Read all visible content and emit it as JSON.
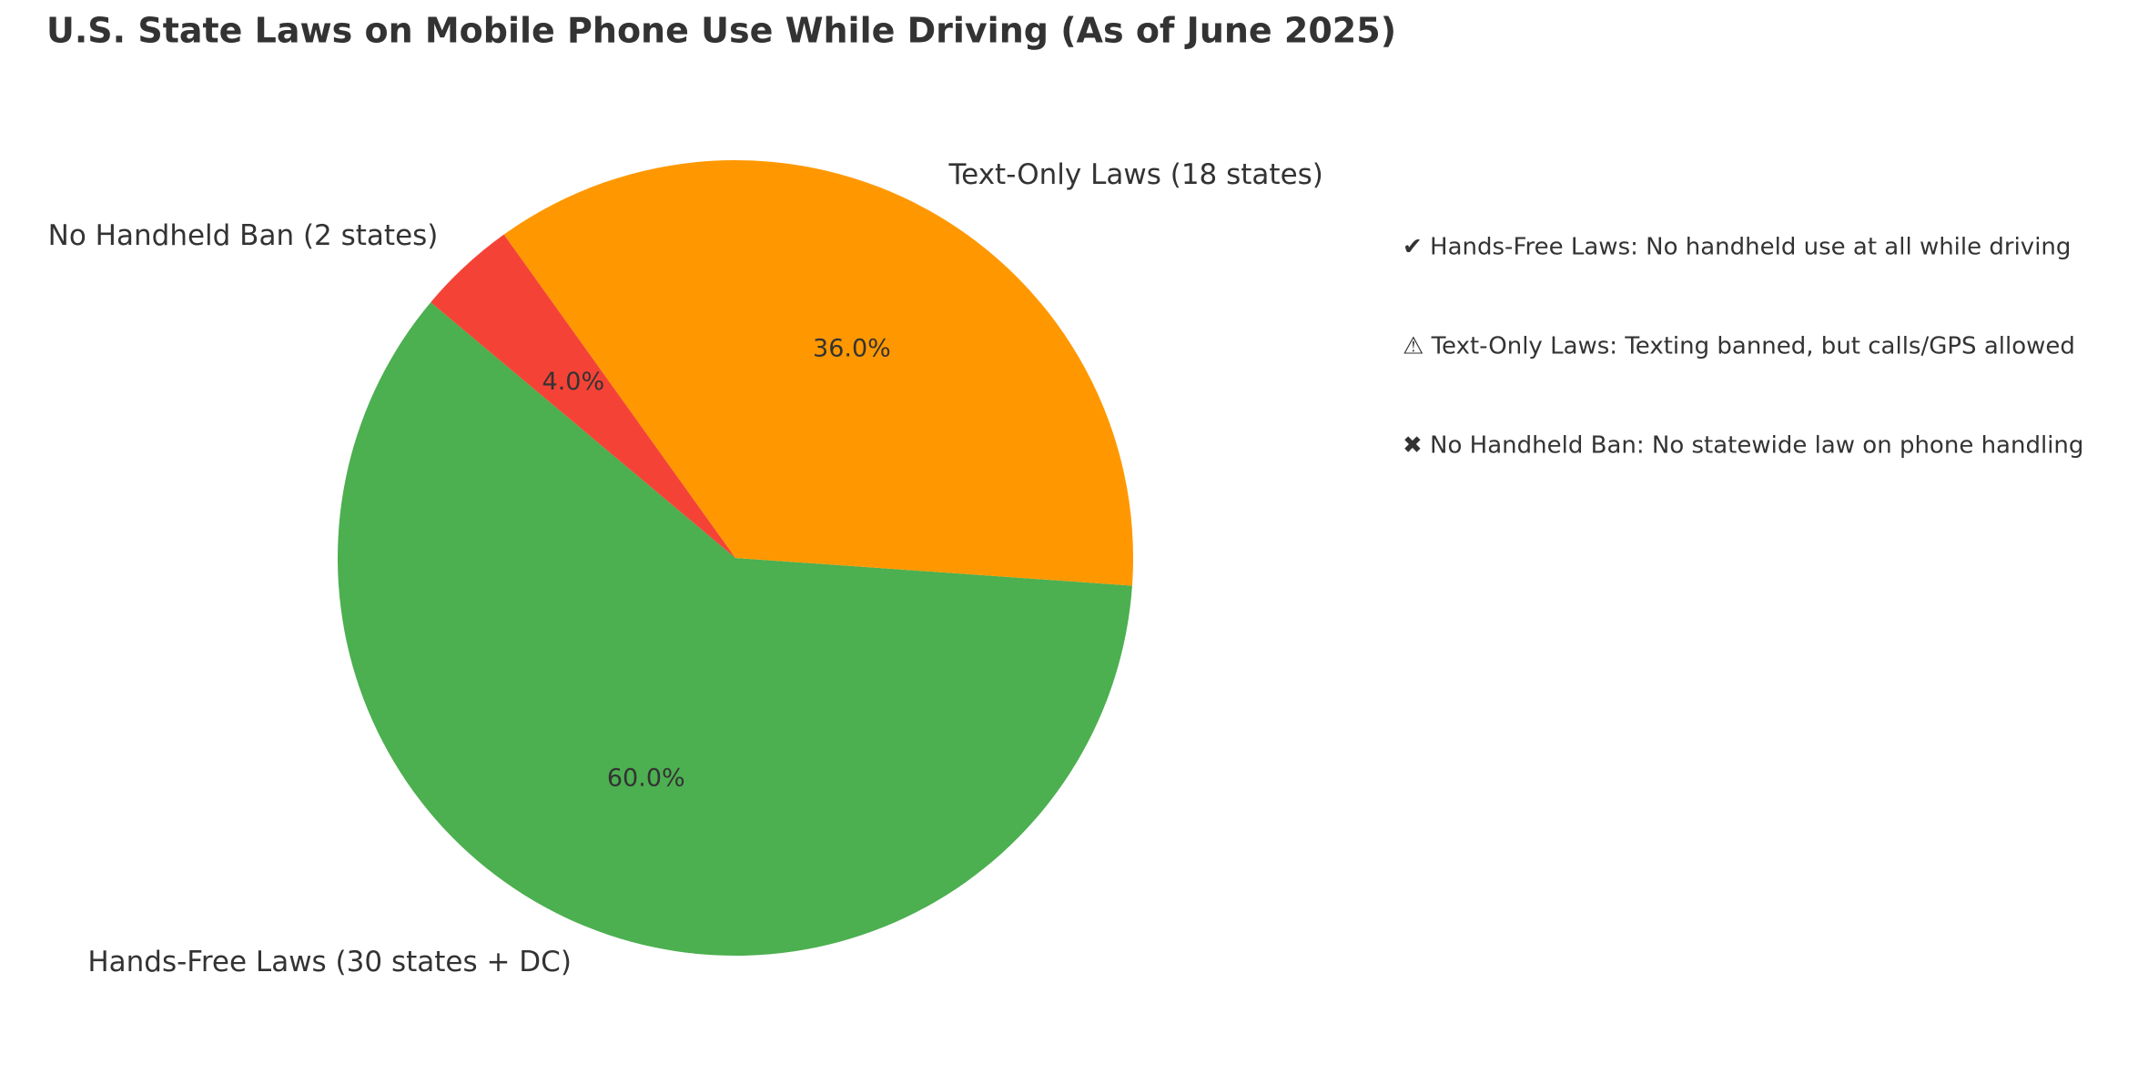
{
  "chart_data": {
    "type": "pie",
    "title": "U.S. State Laws on Mobile Phone Use While Driving (As of June 2025)",
    "categories": [
      "Hands-Free Laws (30 states + DC)",
      "Text-Only Laws (18 states)",
      "No Handheld Ban (2 states)"
    ],
    "values": [
      60,
      36,
      4
    ],
    "value_labels": [
      "60.0%",
      "36.0%",
      "4.0%"
    ],
    "colors": [
      "#4caf50",
      "#ff9800",
      "#f44336"
    ],
    "notes": [
      "✔ Hands-Free Laws: No handheld use at all while driving",
      "⚠ Text-Only Laws: Texting banned, but calls/GPS allowed",
      "✖ No Handheld Ban: No statewide law on phone handling"
    ]
  }
}
